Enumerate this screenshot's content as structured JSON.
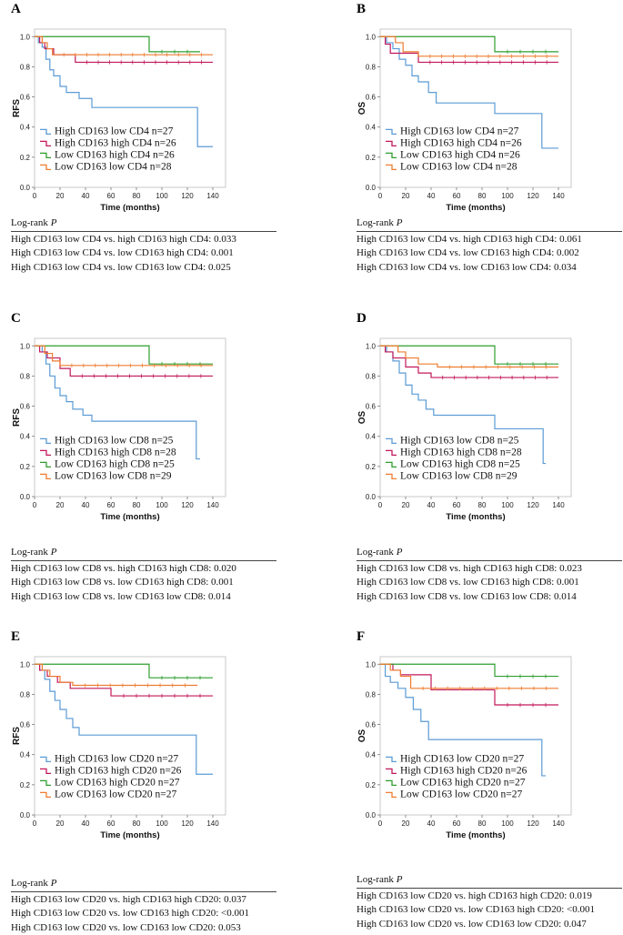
{
  "chart_data": [
    {
      "panel": "A",
      "type": "line",
      "ylabel": "RFS",
      "xlabel": "Time (months)",
      "xlim": [
        0,
        150
      ],
      "ylim": [
        0,
        1.05
      ],
      "xticks": [
        "0",
        "20",
        "40",
        "60",
        "80",
        "100",
        "120",
        "140"
      ],
      "yticks": [
        "0.0",
        "0.2",
        "0.4",
        "0.6",
        "0.8",
        "1.0"
      ],
      "legend_position": "lower-left",
      "series": [
        {
          "name": "High CD163 low CD4 n=27",
          "color": "#5b9bd5",
          "points": [
            [
              0,
              1
            ],
            [
              3,
              0.96
            ],
            [
              6,
              0.93
            ],
            [
              9,
              0.85
            ],
            [
              12,
              0.78
            ],
            [
              15,
              0.74
            ],
            [
              20,
              0.67
            ],
            [
              25,
              0.63
            ],
            [
              35,
              0.59
            ],
            [
              45,
              0.53
            ],
            [
              128,
              0.53
            ],
            [
              128,
              0.27
            ],
            [
              140,
              0.27
            ]
          ]
        },
        {
          "name": "High CD163 high CD4 n=26",
          "color": "#c2185b",
          "points": [
            [
              0,
              1
            ],
            [
              4,
              0.96
            ],
            [
              8,
              0.92
            ],
            [
              15,
              0.88
            ],
            [
              32,
              0.83
            ],
            [
              140,
              0.83
            ]
          ]
        },
        {
          "name": "Low CD163 high CD4 n=26",
          "color": "#2e9e2e",
          "points": [
            [
              0,
              1
            ],
            [
              90,
              1
            ],
            [
              90,
              0.9
            ],
            [
              130,
              0.9
            ]
          ]
        },
        {
          "name": "Low CD163 low CD4 n=28",
          "color": "#ed7d31",
          "points": [
            [
              0,
              1
            ],
            [
              6,
              0.96
            ],
            [
              10,
              0.92
            ],
            [
              14,
              0.88
            ],
            [
              140,
              0.88
            ]
          ]
        }
      ],
      "stats_title": "Log-rank",
      "stats_title_var": "P",
      "stats": [
        "High CD163 low CD4 vs. high CD163 high CD4: 0.033",
        "High CD163 low CD4 vs. low CD163 high CD4: 0.001",
        "High CD163 low CD4 vs. low CD163 low CD4: 0.025"
      ]
    },
    {
      "panel": "B",
      "type": "line",
      "ylabel": "OS",
      "xlabel": "Time (months)",
      "xlim": [
        0,
        150
      ],
      "ylim": [
        0,
        1.05
      ],
      "xticks": [
        "0",
        "20",
        "40",
        "60",
        "80",
        "100",
        "120",
        "140"
      ],
      "yticks": [
        "0.0",
        "0.2",
        "0.4",
        "0.6",
        "0.8",
        "1.0"
      ],
      "legend_position": "lower-left",
      "series": [
        {
          "name": "High CD163 low CD4 n=27",
          "color": "#5b9bd5",
          "points": [
            [
              0,
              1
            ],
            [
              5,
              0.96
            ],
            [
              10,
              0.92
            ],
            [
              15,
              0.85
            ],
            [
              20,
              0.81
            ],
            [
              25,
              0.74
            ],
            [
              30,
              0.7
            ],
            [
              38,
              0.63
            ],
            [
              44,
              0.56
            ],
            [
              90,
              0.56
            ],
            [
              90,
              0.49
            ],
            [
              127,
              0.49
            ],
            [
              127,
              0.26
            ],
            [
              140,
              0.26
            ]
          ]
        },
        {
          "name": "High CD163 high CD4 n=26",
          "color": "#c2185b",
          "points": [
            [
              0,
              1
            ],
            [
              4,
              0.95
            ],
            [
              8,
              0.89
            ],
            [
              30,
              0.83
            ],
            [
              140,
              0.83
            ]
          ]
        },
        {
          "name": "Low CD163 high CD4 n=26",
          "color": "#2e9e2e",
          "points": [
            [
              0,
              1
            ],
            [
              90,
              1
            ],
            [
              90,
              0.9
            ],
            [
              140,
              0.9
            ]
          ]
        },
        {
          "name": "Low CD163 low CD4 n=28",
          "color": "#ed7d31",
          "points": [
            [
              0,
              1
            ],
            [
              12,
              0.96
            ],
            [
              18,
              0.9
            ],
            [
              30,
              0.87
            ],
            [
              140,
              0.87
            ]
          ]
        }
      ],
      "stats_title": "Log-rank",
      "stats_title_var": "P",
      "stats": [
        "High CD163 low CD4 vs. high CD163 high CD4: 0.061",
        "High CD163 low CD4 vs. low CD163 high CD4: 0.002",
        "High CD163 low CD4 vs. low CD163 low CD4: 0.034"
      ]
    },
    {
      "panel": "C",
      "type": "line",
      "ylabel": "RFS",
      "xlabel": "Time (months)",
      "xlim": [
        0,
        150
      ],
      "ylim": [
        0,
        1.05
      ],
      "xticks": [
        "0",
        "20",
        "40",
        "60",
        "80",
        "100",
        "120",
        "140"
      ],
      "yticks": [
        "0.0",
        "0.2",
        "0.4",
        "0.6",
        "0.8",
        "1.0"
      ],
      "legend_position": "lower-left",
      "series": [
        {
          "name": "High CD163 low CD8 n=25",
          "color": "#5b9bd5",
          "points": [
            [
              0,
              1
            ],
            [
              6,
              0.96
            ],
            [
              9,
              0.88
            ],
            [
              12,
              0.8
            ],
            [
              16,
              0.72
            ],
            [
              20,
              0.67
            ],
            [
              25,
              0.63
            ],
            [
              30,
              0.58
            ],
            [
              38,
              0.54
            ],
            [
              45,
              0.5
            ],
            [
              127,
              0.5
            ],
            [
              127,
              0.25
            ],
            [
              130,
              0.25
            ]
          ]
        },
        {
          "name": "High CD163 high CD8 n=28",
          "color": "#c2185b",
          "points": [
            [
              0,
              1
            ],
            [
              4,
              0.96
            ],
            [
              10,
              0.92
            ],
            [
              20,
              0.85
            ],
            [
              28,
              0.8
            ],
            [
              140,
              0.8
            ]
          ]
        },
        {
          "name": "Low CD163 high CD8 n=25",
          "color": "#2e9e2e",
          "points": [
            [
              0,
              1
            ],
            [
              90,
              1
            ],
            [
              90,
              0.88
            ],
            [
              140,
              0.88
            ]
          ]
        },
        {
          "name": "Low CD163 low CD8 n=29",
          "color": "#ed7d31",
          "points": [
            [
              0,
              1
            ],
            [
              8,
              0.95
            ],
            [
              14,
              0.9
            ],
            [
              20,
              0.87
            ],
            [
              140,
              0.87
            ]
          ]
        }
      ],
      "stats_title": "Log-rank",
      "stats_title_var": "P",
      "stats": [
        "High CD163 low CD8 vs. high CD163 high CD8: 0.020",
        "High CD163 low CD8 vs. low CD163 high CD8: 0.001",
        "High CD163 low CD8 vs. low CD163 low CD8: 0.014"
      ]
    },
    {
      "panel": "D",
      "type": "line",
      "ylabel": "OS",
      "xlabel": "Time (months)",
      "xlim": [
        0,
        150
      ],
      "ylim": [
        0,
        1.05
      ],
      "xticks": [
        "0",
        "20",
        "40",
        "60",
        "80",
        "100",
        "120",
        "140"
      ],
      "yticks": [
        "0.0",
        "0.2",
        "0.4",
        "0.6",
        "0.8",
        "1.0"
      ],
      "legend_position": "lower-left",
      "series": [
        {
          "name": "High CD163 low CD8 n=25",
          "color": "#5b9bd5",
          "points": [
            [
              0,
              1
            ],
            [
              5,
              0.96
            ],
            [
              10,
              0.9
            ],
            [
              15,
              0.82
            ],
            [
              20,
              0.74
            ],
            [
              25,
              0.68
            ],
            [
              30,
              0.64
            ],
            [
              36,
              0.58
            ],
            [
              42,
              0.54
            ],
            [
              90,
              0.54
            ],
            [
              90,
              0.45
            ],
            [
              128,
              0.45
            ],
            [
              128,
              0.22
            ],
            [
              130,
              0.22
            ]
          ]
        },
        {
          "name": "High CD163 high CD8 n=28",
          "color": "#c2185b",
          "points": [
            [
              0,
              1
            ],
            [
              4,
              0.96
            ],
            [
              10,
              0.92
            ],
            [
              20,
              0.86
            ],
            [
              30,
              0.82
            ],
            [
              40,
              0.79
            ],
            [
              140,
              0.79
            ]
          ]
        },
        {
          "name": "Low CD163 high CD8 n=25",
          "color": "#2e9e2e",
          "points": [
            [
              0,
              1
            ],
            [
              90,
              1
            ],
            [
              90,
              0.88
            ],
            [
              140,
              0.88
            ]
          ]
        },
        {
          "name": "Low CD163 low CD8 n=29",
          "color": "#ed7d31",
          "points": [
            [
              0,
              1
            ],
            [
              14,
              0.96
            ],
            [
              20,
              0.92
            ],
            [
              30,
              0.88
            ],
            [
              45,
              0.86
            ],
            [
              140,
              0.86
            ]
          ]
        }
      ],
      "stats_title": "Log-rank",
      "stats_title_var": "P",
      "stats": [
        "High CD163 low CD8 vs. high CD163 high CD8: 0.023",
        "High CD163 low CD8 vs. low CD163 high CD8: 0.001",
        "High CD163 low CD8 vs. low CD163 low CD8: 0.014"
      ]
    },
    {
      "panel": "E",
      "type": "line",
      "ylabel": "RFS",
      "xlabel": "Time (months)",
      "xlim": [
        0,
        150
      ],
      "ylim": [
        0,
        1.05
      ],
      "xticks": [
        "0",
        "20",
        "40",
        "60",
        "80",
        "100",
        "120",
        "140"
      ],
      "yticks": [
        "0.0",
        "0.2",
        "0.4",
        "0.6",
        "0.8",
        "1.0"
      ],
      "legend_position": "lower-left",
      "series": [
        {
          "name": "High CD163 low CD20 n=27",
          "color": "#5b9bd5",
          "points": [
            [
              0,
              1
            ],
            [
              4,
              0.96
            ],
            [
              8,
              0.9
            ],
            [
              12,
              0.82
            ],
            [
              16,
              0.76
            ],
            [
              20,
              0.7
            ],
            [
              25,
              0.64
            ],
            [
              30,
              0.58
            ],
            [
              35,
              0.53
            ],
            [
              127,
              0.53
            ],
            [
              127,
              0.27
            ],
            [
              140,
              0.27
            ]
          ]
        },
        {
          "name": "High CD163 high CD20 n=26",
          "color": "#c2185b",
          "points": [
            [
              0,
              1
            ],
            [
              4,
              0.96
            ],
            [
              10,
              0.92
            ],
            [
              18,
              0.88
            ],
            [
              28,
              0.84
            ],
            [
              60,
              0.79
            ],
            [
              140,
              0.79
            ]
          ]
        },
        {
          "name": "Low CD163 high CD20 n=27",
          "color": "#2e9e2e",
          "points": [
            [
              0,
              1
            ],
            [
              90,
              1
            ],
            [
              90,
              0.91
            ],
            [
              140,
              0.91
            ]
          ]
        },
        {
          "name": "Low CD163 low CD20 n=27",
          "color": "#ed7d31",
          "points": [
            [
              0,
              1
            ],
            [
              6,
              0.96
            ],
            [
              12,
              0.92
            ],
            [
              20,
              0.88
            ],
            [
              30,
              0.86
            ],
            [
              128,
              0.86
            ]
          ]
        }
      ],
      "stats_title": "Log-rank",
      "stats_title_var": "P",
      "stats": [
        "High CD163 low CD20 vs. high CD163 high CD20: 0.037",
        "High CD163 low CD20 vs. low CD163 high CD20: <0.001",
        "High CD163 low CD20 vs. low CD163 low CD20: 0.053"
      ]
    },
    {
      "panel": "F",
      "type": "line",
      "ylabel": "OS",
      "xlabel": "Time (months)",
      "xlim": [
        0,
        150
      ],
      "ylim": [
        0,
        1.05
      ],
      "xticks": [
        "0",
        "20",
        "40",
        "60",
        "80",
        "100",
        "120",
        "140"
      ],
      "yticks": [
        "0.0",
        "0.2",
        "0.4",
        "0.6",
        "0.8",
        "1.0"
      ],
      "legend_position": "lower-left",
      "series": [
        {
          "name": "High CD163 low CD20 n=27",
          "color": "#5b9bd5",
          "points": [
            [
              0,
              1
            ],
            [
              4,
              0.92
            ],
            [
              8,
              0.88
            ],
            [
              14,
              0.84
            ],
            [
              20,
              0.78
            ],
            [
              26,
              0.7
            ],
            [
              32,
              0.62
            ],
            [
              38,
              0.5
            ],
            [
              127,
              0.5
            ],
            [
              127,
              0.26
            ],
            [
              130,
              0.26
            ]
          ]
        },
        {
          "name": "High CD163 high CD20 n=26",
          "color": "#c2185b",
          "points": [
            [
              0,
              1
            ],
            [
              10,
              0.96
            ],
            [
              16,
              0.93
            ],
            [
              40,
              0.83
            ],
            [
              90,
              0.83
            ],
            [
              90,
              0.73
            ],
            [
              140,
              0.73
            ]
          ]
        },
        {
          "name": "Low CD163 high CD20 n=27",
          "color": "#2e9e2e",
          "points": [
            [
              0,
              1
            ],
            [
              90,
              1
            ],
            [
              90,
              0.92
            ],
            [
              140,
              0.92
            ]
          ]
        },
        {
          "name": "Low CD163 low CD20 n=27",
          "color": "#ed7d31",
          "points": [
            [
              0,
              1
            ],
            [
              8,
              0.96
            ],
            [
              16,
              0.92
            ],
            [
              24,
              0.84
            ],
            [
              140,
              0.84
            ]
          ]
        }
      ],
      "stats_title": "Log-rank",
      "stats_title_var": "P",
      "stats": [
        "High CD163 low CD20 vs. high CD163 high CD20: 0.019",
        "High CD163 low CD20 vs. low CD163 high CD20: <0.001",
        "High CD163 low CD20 vs. low CD163 low CD20: 0.047"
      ]
    }
  ]
}
